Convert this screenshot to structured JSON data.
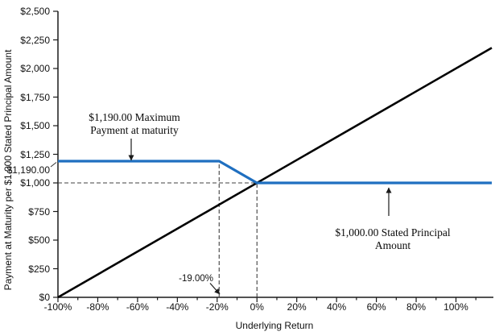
{
  "chart_data": {
    "type": "line",
    "title": "",
    "xlabel": "Underlying Return",
    "ylabel": "Payment at Maturity per $1,000 Stated Principal Amount",
    "xlim": [
      -100,
      118
    ],
    "ylim": [
      0,
      2500
    ],
    "grid": false,
    "legend": "none",
    "x_axis": {
      "major_ticks": [
        {
          "value": -100,
          "label": "-100%"
        },
        {
          "value": -80,
          "label": "-80%"
        },
        {
          "value": -60,
          "label": "-60%"
        },
        {
          "value": -40,
          "label": "-40%"
        },
        {
          "value": -20,
          "label": "-20%"
        },
        {
          "value": 0,
          "label": "0%"
        },
        {
          "value": 20,
          "label": "20%"
        },
        {
          "value": 40,
          "label": "40%"
        },
        {
          "value": 60,
          "label": "60%"
        },
        {
          "value": 80,
          "label": "80%"
        },
        {
          "value": 100,
          "label": "100%"
        }
      ],
      "minor_ticks": [
        -90,
        -70,
        -50,
        -30,
        -10,
        10,
        30,
        50,
        70,
        90,
        110
      ]
    },
    "y_axis": {
      "ticks": [
        {
          "value": 0,
          "label": "$0"
        },
        {
          "value": 250,
          "label": "$250"
        },
        {
          "value": 500,
          "label": "$500"
        },
        {
          "value": 750,
          "label": "$750"
        },
        {
          "value": 1000,
          "label": "$1,000"
        },
        {
          "value": 1250,
          "label": "$1,250"
        },
        {
          "value": 1500,
          "label": "$1,500"
        },
        {
          "value": 1750,
          "label": "$1,750"
        },
        {
          "value": 2000,
          "label": "$2,000"
        },
        {
          "value": 2250,
          "label": "$2,250"
        },
        {
          "value": 2500,
          "label": "$2,500"
        }
      ],
      "special_label": {
        "value": 1190,
        "label": "$1,190.00"
      }
    },
    "series": [
      {
        "name": "underlying-return-reference-line",
        "color": "#000000",
        "stroke_width": 2.6,
        "points": [
          [
            -100,
            0
          ],
          [
            118,
            2180
          ]
        ]
      },
      {
        "name": "payment-at-maturity-line",
        "color": "#1f6fc0",
        "stroke_width": 3.2,
        "points": [
          [
            -100,
            1190
          ],
          [
            -19,
            1190
          ],
          [
            0,
            1000
          ],
          [
            118,
            1000
          ]
        ]
      }
    ],
    "guides": [
      {
        "orientation": "horizontal",
        "at": 1000,
        "from": -100,
        "to": 0
      },
      {
        "orientation": "vertical",
        "at": -19,
        "from": 0,
        "to": 1190
      },
      {
        "orientation": "vertical",
        "at": 0,
        "from": 0,
        "to": 1000
      }
    ],
    "annotations": {
      "max_payment": {
        "line1": "$1,190.00 Maximum",
        "line2": "Payment at maturity"
      },
      "stated_principal": {
        "line1": "$1,000.00 Stated Principal",
        "line2": "Amount"
      },
      "cap_return": "-19.00%"
    },
    "colors": {
      "payment_line": "#1f6fc0",
      "reference_line": "#000000",
      "dashed_guide": "#404040"
    }
  }
}
